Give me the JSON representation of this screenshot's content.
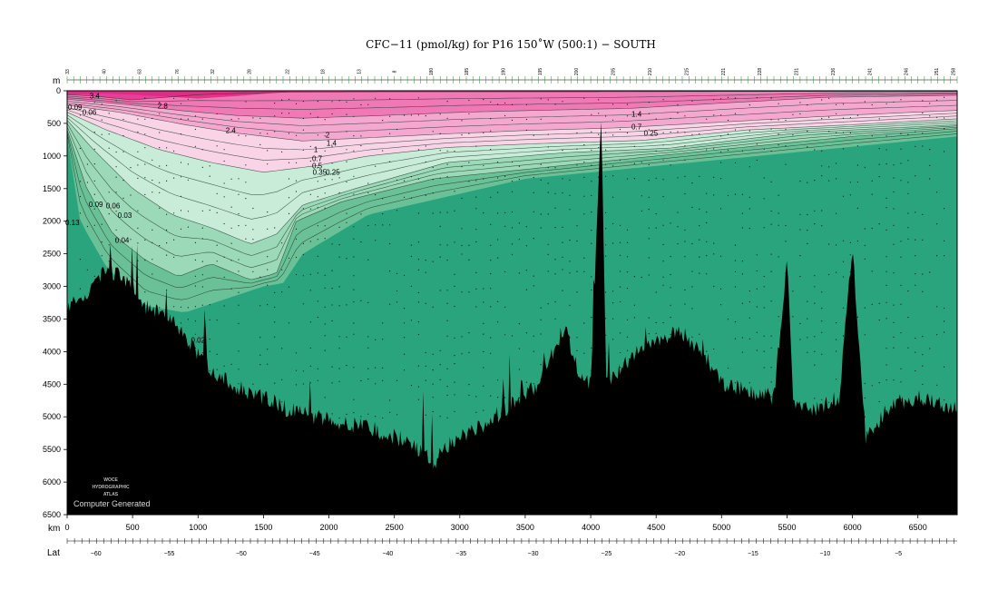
{
  "chart_data": {
    "type": "section-contour",
    "title": "CFC−11 (pmol/kg) for P16 150˚W (500:1) − SOUTH",
    "depth_unit": "m",
    "distance_unit": "km",
    "lat_label": "Lat",
    "credit": {
      "logo_lines": [
        "WOCE",
        "HYDROGRAPHIC",
        "ATLAS"
      ],
      "text": "Computer Generated"
    },
    "xlim": [
      0,
      6800
    ],
    "ylim": [
      0,
      6500
    ],
    "depth_ticks": [
      0,
      500,
      1000,
      1500,
      2000,
      2500,
      3000,
      3500,
      4000,
      4500,
      5000,
      5500,
      6000,
      6500
    ],
    "distance_ticks": [
      0,
      500,
      1000,
      1500,
      2000,
      2500,
      3000,
      3500,
      4000,
      4500,
      5000,
      5500,
      6000,
      6500
    ],
    "lat_ticks": [
      {
        "label": "−60",
        "km": 220
      },
      {
        "label": "−55",
        "km": 780
      },
      {
        "label": "−50",
        "km": 1330
      },
      {
        "label": "−45",
        "km": 1890
      },
      {
        "label": "−40",
        "km": 2450
      },
      {
        "label": "−35",
        "km": 3010
      },
      {
        "label": "−30",
        "km": 3560
      },
      {
        "label": "−25",
        "km": 4120
      },
      {
        "label": "−20",
        "km": 4680
      },
      {
        "label": "−15",
        "km": 5240
      },
      {
        "label": "−10",
        "km": 5790
      },
      {
        "label": "−5",
        "km": 6350
      }
    ],
    "station_labels": [
      {
        "label": "33",
        "km": 0
      },
      {
        "label": "40",
        "km": 280
      },
      {
        "label": "63",
        "km": 550
      },
      {
        "label": "76",
        "km": 840
      },
      {
        "label": "32",
        "km": 1110
      },
      {
        "label": "28",
        "km": 1390
      },
      {
        "label": "22",
        "km": 1680
      },
      {
        "label": "18",
        "km": 1950
      },
      {
        "label": "13",
        "km": 2230
      },
      {
        "label": "8",
        "km": 2500
      },
      {
        "label": "180",
        "km": 2780
      },
      {
        "label": "185",
        "km": 3050
      },
      {
        "label": "190",
        "km": 3330
      },
      {
        "label": "195",
        "km": 3610
      },
      {
        "label": "200",
        "km": 3890
      },
      {
        "label": "205",
        "km": 4170
      },
      {
        "label": "210",
        "km": 4450
      },
      {
        "label": "215",
        "km": 4730
      },
      {
        "label": "221",
        "km": 5010
      },
      {
        "label": "228",
        "km": 5290
      },
      {
        "label": "231",
        "km": 5570
      },
      {
        "label": "236",
        "km": 5850
      },
      {
        "label": "241",
        "km": 6130
      },
      {
        "label": "246",
        "km": 6410
      },
      {
        "label": "251",
        "km": 6640
      },
      {
        "label": "258",
        "km": 6770
      }
    ],
    "contour_labels": [
      {
        "text": "3.4",
        "km": 210,
        "depth": 120
      },
      {
        "text": "2.8",
        "km": 730,
        "depth": 270
      },
      {
        "text": "2.4",
        "km": 1250,
        "depth": 650
      },
      {
        "text": "2",
        "km": 1990,
        "depth": 720
      },
      {
        "text": "1.4",
        "km": 2020,
        "depth": 840
      },
      {
        "text": "1",
        "km": 1900,
        "depth": 940
      },
      {
        "text": "0.7",
        "km": 1910,
        "depth": 1080
      },
      {
        "text": "0.5",
        "km": 1910,
        "depth": 1190
      },
      {
        "text": "0.35",
        "km": 1930,
        "depth": 1290
      },
      {
        "text": "0.25",
        "km": 2030,
        "depth": 1290
      },
      {
        "text": "0.09",
        "km": 60,
        "depth": 290
      },
      {
        "text": "0.06",
        "km": 170,
        "depth": 370
      },
      {
        "text": "0.09",
        "km": 220,
        "depth": 1780
      },
      {
        "text": "0.06",
        "km": 350,
        "depth": 1800
      },
      {
        "text": "0.03",
        "km": 440,
        "depth": 1950
      },
      {
        "text": "0.13",
        "km": 40,
        "depth": 2060
      },
      {
        "text": "0.04",
        "km": 420,
        "depth": 2330
      },
      {
        "text": "0.02",
        "km": 1000,
        "depth": 3860
      },
      {
        "text": "1.4",
        "km": 4350,
        "depth": 400
      },
      {
        "text": "0.7",
        "km": 4350,
        "depth": 590
      },
      {
        "text": "0.25",
        "km": 4460,
        "depth": 690
      }
    ],
    "color_scale": [
      {
        "level": 3.0,
        "color": "#e83e98"
      },
      {
        "level": 2.4,
        "color": "#f078b4"
      },
      {
        "level": 1.4,
        "color": "#f5a8cf"
      },
      {
        "level": 0.7,
        "color": "#f9d4e6"
      },
      {
        "level": 0.35,
        "color": "#c9ecd9"
      },
      {
        "level": 0.15,
        "color": "#9bd9b8"
      },
      {
        "level": 0.06,
        "color": "#6ac198"
      },
      {
        "level": 0.02,
        "color": "#29a47c"
      }
    ],
    "bottom_color": "#000000",
    "background_water_color": "#29a47c"
  }
}
